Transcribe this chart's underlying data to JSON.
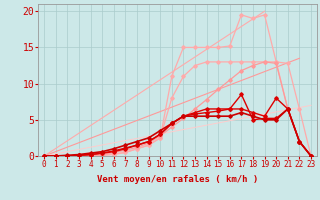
{
  "background_color": "#cce8e8",
  "grid_color": "#aacccc",
  "xlabel": "Vent moyen/en rafales ( km/h )",
  "xlabel_color": "#cc0000",
  "xlabel_fontsize": 6.5,
  "tick_color": "#cc0000",
  "tick_fontsize": 5.5,
  "ytick_fontsize": 7,
  "xlim": [
    -0.5,
    23.5
  ],
  "ylim": [
    0,
    21
  ],
  "yticks": [
    0,
    5,
    10,
    15,
    20
  ],
  "xticks": [
    0,
    1,
    2,
    3,
    4,
    5,
    6,
    7,
    8,
    9,
    10,
    11,
    12,
    13,
    14,
    15,
    16,
    17,
    18,
    19,
    20,
    21,
    22,
    23
  ],
  "lines": [
    {
      "x": [
        0,
        19
      ],
      "y": [
        0,
        20
      ],
      "color": "#ffaaaa",
      "linewidth": 0.8,
      "marker": null,
      "zorder": 1
    },
    {
      "x": [
        0,
        1,
        2,
        3,
        4,
        5,
        6,
        7,
        8,
        9,
        10,
        11,
        12,
        13,
        14,
        15,
        16,
        17,
        18,
        19,
        20,
        21,
        22,
        23
      ],
      "y": [
        0,
        0,
        0,
        0,
        0,
        0.1,
        0.3,
        0.5,
        1.0,
        1.5,
        2.5,
        11.0,
        15.0,
        15.0,
        15.0,
        15.0,
        15.2,
        19.5,
        19.0,
        19.5,
        13.0,
        6.5,
        2.0,
        0.0
      ],
      "color": "#ffaaaa",
      "linewidth": 0.9,
      "marker": "D",
      "markersize": 1.8,
      "zorder": 2
    },
    {
      "x": [
        0,
        1,
        2,
        3,
        4,
        5,
        6,
        7,
        8,
        9,
        10,
        11,
        12,
        13,
        14,
        15,
        16,
        17,
        18,
        19,
        20,
        21,
        22,
        23
      ],
      "y": [
        0,
        0,
        0,
        0,
        0,
        0.1,
        0.2,
        0.5,
        1.0,
        1.5,
        2.5,
        8.0,
        11.0,
        12.5,
        13.0,
        13.0,
        13.0,
        13.0,
        13.0,
        13.0,
        13.0,
        12.8,
        6.5,
        0.0
      ],
      "color": "#ffaaaa",
      "linewidth": 0.9,
      "marker": "D",
      "markersize": 1.8,
      "zorder": 2
    },
    {
      "x": [
        0,
        22
      ],
      "y": [
        0,
        13.5
      ],
      "color": "#ff9999",
      "linewidth": 0.8,
      "marker": null,
      "zorder": 1
    },
    {
      "x": [
        0,
        1,
        2,
        3,
        4,
        5,
        6,
        7,
        8,
        9,
        10,
        11,
        12,
        13,
        14,
        15,
        16,
        17,
        18,
        19,
        20,
        21,
        22,
        23
      ],
      "y": [
        0,
        0,
        0,
        0,
        0.1,
        0.2,
        0.5,
        0.8,
        1.2,
        1.8,
        2.8,
        4.0,
        5.2,
        6.5,
        7.8,
        9.2,
        10.5,
        11.8,
        12.5,
        13.0,
        12.8,
        6.5,
        2.0,
        0.0
      ],
      "color": "#ff9999",
      "linewidth": 0.9,
      "marker": "D",
      "markersize": 1.8,
      "zorder": 2
    },
    {
      "x": [
        0,
        1,
        2,
        3,
        4,
        5,
        6,
        7,
        8,
        9,
        10,
        11,
        12,
        13,
        14,
        15,
        16,
        17,
        18,
        19,
        20,
        21,
        22,
        23
      ],
      "y": [
        0,
        0,
        0,
        0.1,
        0.2,
        0.4,
        0.6,
        1.0,
        1.5,
        2.0,
        3.0,
        4.5,
        5.5,
        6.0,
        6.5,
        6.5,
        6.5,
        8.5,
        5.0,
        5.2,
        5.2,
        6.5,
        2.0,
        0.0
      ],
      "color": "#dd0000",
      "linewidth": 1.0,
      "marker": "D",
      "markersize": 1.8,
      "zorder": 4
    },
    {
      "x": [
        0,
        1,
        2,
        3,
        4,
        5,
        6,
        7,
        8,
        9,
        10,
        11,
        12,
        13,
        14,
        15,
        16,
        17,
        18,
        19,
        20,
        21,
        22,
        23
      ],
      "y": [
        0,
        0,
        0,
        0.1,
        0.2,
        0.4,
        0.7,
        1.1,
        1.5,
        2.0,
        3.0,
        4.5,
        5.5,
        5.8,
        6.0,
        6.2,
        6.5,
        6.5,
        6.0,
        5.5,
        8.0,
        6.5,
        2.0,
        0.0
      ],
      "color": "#dd0000",
      "linewidth": 1.0,
      "marker": "D",
      "markersize": 1.8,
      "zorder": 4
    },
    {
      "x": [
        0,
        1,
        2,
        3,
        4,
        5,
        6,
        7,
        8,
        9,
        10,
        11,
        12,
        13,
        14,
        15,
        16,
        17,
        18,
        19,
        20,
        21,
        22,
        23
      ],
      "y": [
        0,
        0,
        0.1,
        0.2,
        0.4,
        0.6,
        1.0,
        1.5,
        2.0,
        2.5,
        3.5,
        4.5,
        5.5,
        5.5,
        5.5,
        5.5,
        5.5,
        6.0,
        5.5,
        5.0,
        5.0,
        6.5,
        2.0,
        0.0
      ],
      "color": "#cc0000",
      "linewidth": 1.2,
      "marker": "D",
      "markersize": 1.8,
      "zorder": 5
    },
    {
      "x": [
        0,
        23
      ],
      "y": [
        0,
        7.0
      ],
      "color": "#ffcccc",
      "linewidth": 0.7,
      "marker": null,
      "zorder": 1
    }
  ]
}
